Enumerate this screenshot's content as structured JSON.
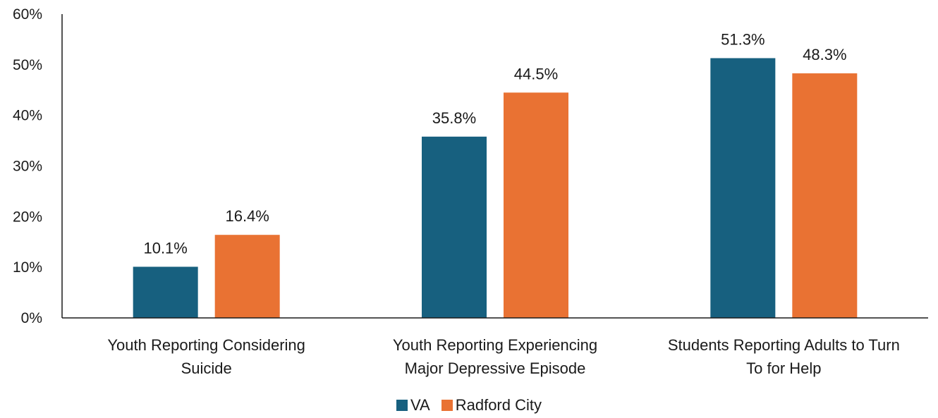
{
  "chart_data": {
    "type": "bar",
    "categories": [
      [
        "Youth Reporting Considering",
        "Suicide"
      ],
      [
        "Youth Reporting Experiencing",
        "Major Depressive Episode"
      ],
      [
        "Students Reporting Adults to Turn",
        "To for Help"
      ]
    ],
    "series": [
      {
        "name": "VA",
        "color": "#17607f",
        "values": [
          10.1,
          35.8,
          51.3
        ],
        "labels": [
          "10.1%",
          "35.8%",
          "51.3%"
        ]
      },
      {
        "name": "Radford City",
        "color": "#e97233",
        "values": [
          16.4,
          44.5,
          48.3
        ],
        "labels": [
          "16.4%",
          "44.5%",
          "48.3%"
        ]
      }
    ],
    "yticks": [
      "0%",
      "10%",
      "20%",
      "30%",
      "40%",
      "50%",
      "60%"
    ],
    "ylim": [
      0,
      60
    ],
    "grid": false,
    "legend_position": "bottom"
  }
}
